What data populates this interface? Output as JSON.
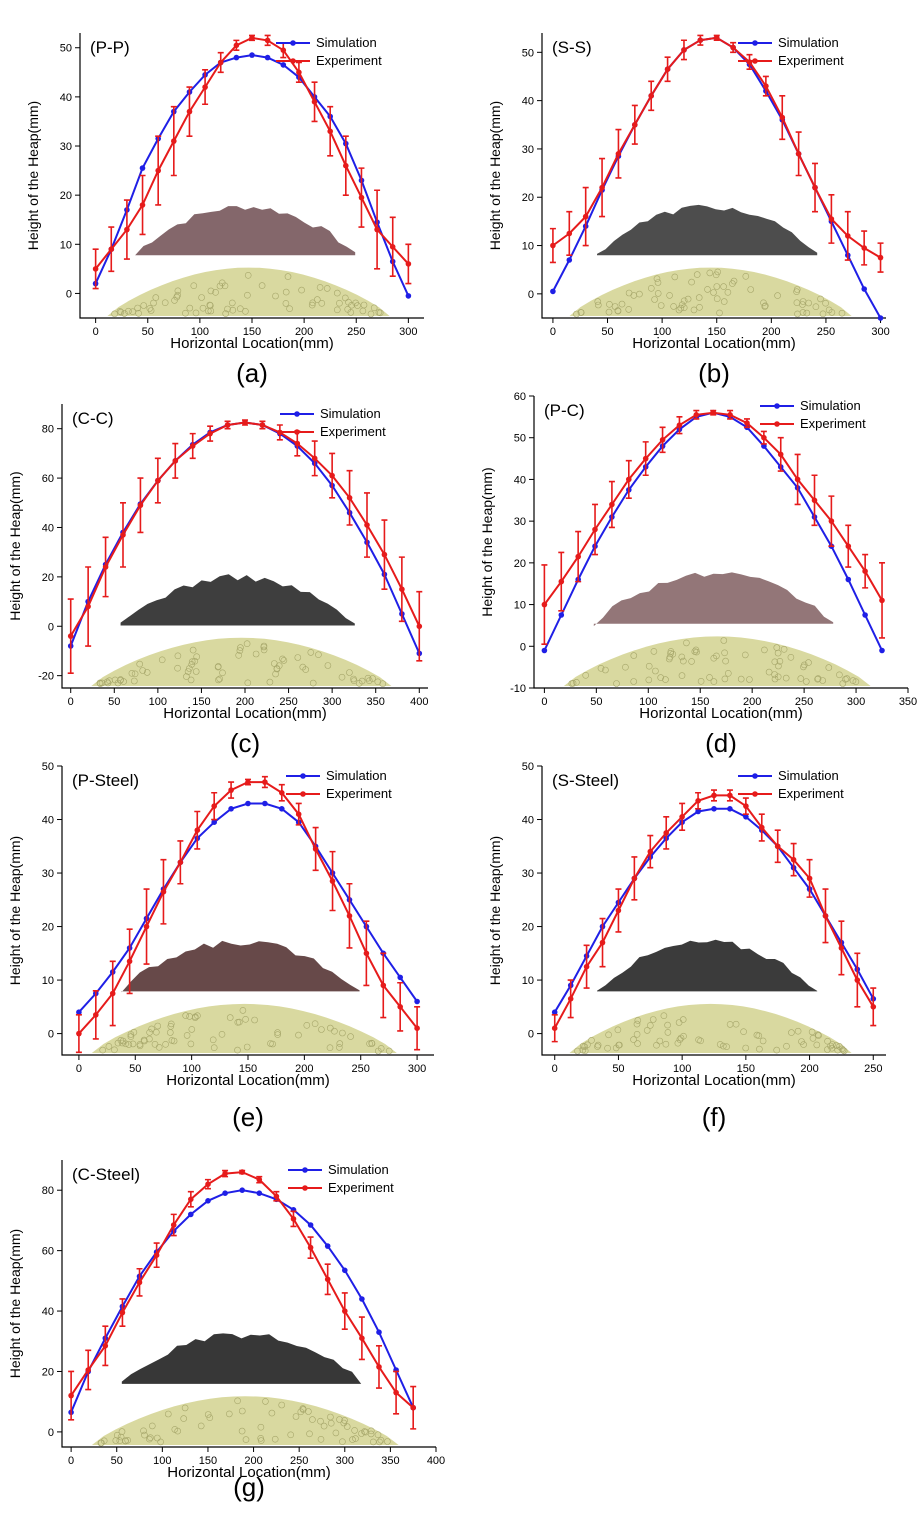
{
  "colors": {
    "simulation": "#1f1fe6",
    "experiment": "#e61b1b",
    "sim_particles": "#d9d9a0",
    "sim_particles_edge": "#a6a66a"
  },
  "chart_data": [
    {
      "type": "line",
      "subtitle": "(a)",
      "title": "(P-P)",
      "xlabel": "Horizontal Location(mm)",
      "ylabel": "Height of the Heap(mm)",
      "xlim": [
        -15,
        315
      ],
      "ylim": [
        -5,
        53
      ],
      "xticks": [
        0,
        50,
        100,
        150,
        200,
        250,
        300
      ],
      "yticks": [
        0,
        10,
        20,
        30,
        40,
        50
      ],
      "legend_position": "top-right",
      "photo_color": "#7a5a5e",
      "series": [
        {
          "name": "Simulation",
          "x": [
            0,
            15,
            30,
            45,
            60,
            75,
            90,
            105,
            120,
            135,
            150,
            165,
            180,
            195,
            210,
            225,
            240,
            255,
            270,
            285,
            300
          ],
          "values": [
            2,
            9,
            17,
            25.5,
            31.5,
            37,
            41,
            44.5,
            47,
            48,
            48.5,
            48,
            46.5,
            44,
            40,
            36,
            30.5,
            23,
            14.5,
            6.5,
            -0.5
          ]
        },
        {
          "name": "Experiment",
          "x": [
            0,
            15,
            30,
            45,
            60,
            75,
            90,
            105,
            120,
            135,
            150,
            165,
            180,
            195,
            210,
            225,
            240,
            255,
            270,
            285,
            300
          ],
          "values": [
            5,
            9,
            13,
            18,
            25,
            31,
            37,
            42,
            47,
            50.5,
            52,
            51.5,
            49.5,
            45,
            39,
            33,
            26,
            19.5,
            13,
            9.5,
            6
          ],
          "err": [
            4,
            4.5,
            6,
            6,
            7,
            7,
            5,
            3.5,
            2,
            1,
            0.5,
            1,
            1.5,
            2,
            4,
            5,
            6,
            6,
            8,
            6,
            4
          ]
        }
      ]
    },
    {
      "type": "line",
      "subtitle": "(b)",
      "title": "(S-S)",
      "xlabel": "Horizontal Location(mm)",
      "ylabel": "Height of the Heap(mm)",
      "xlim": [
        -10,
        305
      ],
      "ylim": [
        -5,
        54
      ],
      "xticks": [
        0,
        50,
        100,
        150,
        200,
        250,
        300
      ],
      "yticks": [
        0,
        10,
        20,
        30,
        40,
        50
      ],
      "legend_position": "top-right",
      "photo_color": "#3e3e3e",
      "series": [
        {
          "name": "Simulation",
          "x": [
            0,
            15,
            30,
            45,
            60,
            75,
            90,
            105,
            120,
            135,
            150,
            165,
            180,
            195,
            210,
            225,
            240,
            255,
            270,
            285,
            300
          ],
          "values": [
            0.5,
            7,
            14,
            21.5,
            28.5,
            35,
            41,
            46.5,
            50.5,
            52.5,
            53,
            51,
            47.5,
            42,
            36,
            29,
            22,
            15,
            8,
            1,
            -5
          ]
        },
        {
          "name": "Experiment",
          "x": [
            0,
            15,
            30,
            45,
            60,
            75,
            90,
            105,
            120,
            135,
            150,
            165,
            180,
            195,
            210,
            225,
            240,
            255,
            270,
            285,
            300
          ],
          "values": [
            10,
            12.5,
            16,
            22,
            29,
            35,
            41,
            46.5,
            50.5,
            52.5,
            53,
            51,
            48,
            43,
            36.5,
            29,
            22,
            15.5,
            12,
            9.5,
            7.5
          ],
          "err": [
            3.5,
            4.5,
            6,
            6,
            5,
            4,
            3,
            2.5,
            2,
            1,
            0.5,
            1,
            1.5,
            2,
            4.5,
            4.5,
            5,
            5,
            5,
            3.5,
            3
          ]
        }
      ]
    },
    {
      "type": "line",
      "subtitle": "(c)",
      "title": "(C-C)",
      "xlabel": "Horizontal Location(mm)",
      "ylabel": "Height of the Heap(mm)",
      "xlim": [
        -10,
        410
      ],
      "ylim": [
        -25,
        90
      ],
      "xticks": [
        0,
        50,
        100,
        150,
        200,
        250,
        300,
        350,
        400
      ],
      "yticks": [
        -20,
        0,
        20,
        40,
        60,
        80
      ],
      "legend_position": "top-right",
      "photo_color": "#2e2e2e",
      "series": [
        {
          "name": "Simulation",
          "x": [
            0,
            20,
            40,
            60,
            80,
            100,
            120,
            140,
            160,
            180,
            200,
            220,
            240,
            260,
            280,
            300,
            320,
            340,
            360,
            380,
            400
          ],
          "values": [
            -8,
            10,
            25,
            38,
            49.5,
            59,
            67,
            73.5,
            78.5,
            81.5,
            82.5,
            81.5,
            78,
            73,
            66,
            57,
            46,
            34,
            21,
            5,
            -11
          ]
        },
        {
          "name": "Experiment",
          "x": [
            0,
            20,
            40,
            60,
            80,
            100,
            120,
            140,
            160,
            180,
            200,
            220,
            240,
            260,
            280,
            300,
            320,
            340,
            360,
            380,
            400
          ],
          "values": [
            -4,
            8,
            24,
            37,
            49,
            59,
            67,
            73,
            78,
            81.5,
            82.5,
            81.5,
            78.5,
            74,
            68,
            61,
            52,
            41,
            29,
            15,
            0
          ],
          "err": [
            15,
            16,
            12,
            13,
            11,
            9,
            7,
            5,
            3,
            1.5,
            1,
            1.5,
            3,
            5,
            7,
            9,
            11,
            13,
            14,
            13,
            14
          ]
        }
      ]
    },
    {
      "type": "line",
      "subtitle": "(d)",
      "title": "(P-C)",
      "xlabel": "Horizontal Location(mm)",
      "ylabel": "Height of the Heap(mm)",
      "xlim": [
        -10,
        350
      ],
      "ylim": [
        -10,
        60
      ],
      "xticks": [
        0,
        50,
        100,
        150,
        200,
        250,
        300,
        350
      ],
      "yticks": [
        -10,
        0,
        10,
        20,
        30,
        40,
        50,
        60
      ],
      "legend_position": "top-right",
      "photo_color": "#8a6a6c",
      "series": [
        {
          "name": "Simulation",
          "x": [
            0,
            16.25,
            32.5,
            48.75,
            65,
            81.25,
            97.5,
            113.75,
            130,
            146.25,
            162.5,
            178.75,
            195,
            211.25,
            227.5,
            243.75,
            260,
            276.25,
            292.5,
            308.75,
            325
          ],
          "values": [
            -1,
            7.5,
            16,
            24,
            31,
            37.5,
            43,
            48,
            52,
            55,
            56,
            55,
            52.5,
            48,
            43,
            38,
            31,
            24,
            16,
            7.5,
            -1
          ]
        },
        {
          "name": "Experiment",
          "x": [
            0,
            16.25,
            32.5,
            48.75,
            65,
            81.25,
            97.5,
            113.75,
            130,
            146.25,
            162.5,
            178.75,
            195,
            211.25,
            227.5,
            243.75,
            260,
            276.25,
            292.5,
            308.75,
            325
          ],
          "values": [
            10,
            15.5,
            21.5,
            28,
            34,
            40,
            45,
            49.5,
            53,
            55.5,
            56,
            55.5,
            53.5,
            50,
            46,
            40,
            35,
            30,
            24,
            18,
            11
          ],
          "err": [
            9.5,
            7,
            6,
            6,
            5.5,
            4.5,
            4,
            3,
            2,
            1,
            0.5,
            1,
            1,
            1.5,
            4,
            6,
            6,
            6,
            5,
            4,
            9
          ]
        }
      ]
    },
    {
      "type": "line",
      "subtitle": "(e)",
      "title": "(P-Steel)",
      "xlabel": "Horizontal Location(mm)",
      "ylabel": "Height of the Heap(mm)",
      "xlim": [
        -15,
        315
      ],
      "ylim": [
        -4,
        50
      ],
      "xticks": [
        0,
        50,
        100,
        150,
        200,
        250,
        300
      ],
      "yticks": [
        0,
        10,
        20,
        30,
        40,
        50
      ],
      "legend_position": "top-right",
      "photo_color": "#5a3a3a",
      "series": [
        {
          "name": "Simulation",
          "x": [
            0,
            15,
            30,
            45,
            60,
            75,
            90,
            105,
            120,
            135,
            150,
            165,
            180,
            195,
            210,
            225,
            240,
            255,
            270,
            285,
            300
          ],
          "values": [
            4,
            7.5,
            11.5,
            16,
            21.5,
            27,
            32,
            36.5,
            39.5,
            42,
            43,
            43,
            42,
            39.5,
            35,
            30,
            25,
            20,
            15,
            10.5,
            6
          ]
        },
        {
          "name": "Experiment",
          "x": [
            0,
            15,
            30,
            45,
            60,
            75,
            90,
            105,
            120,
            135,
            150,
            165,
            180,
            195,
            210,
            225,
            240,
            255,
            270,
            285,
            300
          ],
          "values": [
            0,
            3.5,
            7.5,
            13.5,
            20,
            26.5,
            32,
            38,
            42.5,
            45.5,
            47,
            47,
            45,
            41,
            34.5,
            28.5,
            22,
            15,
            9,
            5,
            1
          ],
          "err": [
            3.5,
            4.5,
            6,
            6,
            7,
            6,
            4,
            3.5,
            2.5,
            1.5,
            0.5,
            1,
            1.5,
            2,
            4,
            5.5,
            6,
            6,
            6,
            4.5,
            4
          ]
        }
      ]
    },
    {
      "type": "line",
      "subtitle": "(f)",
      "title": "(S-Steel)",
      "xlabel": "Horizontal Location(mm)",
      "ylabel": "Height of the Heap(mm)",
      "xlim": [
        -10,
        260
      ],
      "ylim": [
        -4,
        50
      ],
      "xticks": [
        0,
        50,
        100,
        150,
        200,
        250
      ],
      "yticks": [
        0,
        10,
        20,
        30,
        40,
        50
      ],
      "legend_position": "top-right",
      "photo_color": "#2a2a2a",
      "series": [
        {
          "name": "Simulation",
          "x": [
            0,
            12.5,
            25,
            37.5,
            50,
            62.5,
            75,
            87.5,
            100,
            112.5,
            125,
            137.5,
            150,
            162.5,
            175,
            187.5,
            200,
            212.5,
            225,
            237.5,
            250
          ],
          "values": [
            4,
            9,
            14.5,
            20,
            24.5,
            29,
            33,
            36.5,
            39.5,
            41.5,
            42,
            42,
            40.5,
            38,
            35,
            31,
            27,
            22,
            17,
            12,
            6.5
          ]
        },
        {
          "name": "Experiment",
          "x": [
            0,
            12.5,
            25,
            37.5,
            50,
            62.5,
            75,
            87.5,
            100,
            112.5,
            125,
            137.5,
            150,
            162.5,
            175,
            187.5,
            200,
            212.5,
            225,
            237.5,
            250
          ],
          "values": [
            1,
            6.5,
            12.5,
            17,
            23,
            29,
            34,
            37.5,
            40.5,
            43.5,
            44.5,
            44.5,
            42.5,
            38.5,
            35,
            32.5,
            29,
            22,
            16,
            10,
            5
          ],
          "err": [
            2.5,
            3.5,
            4,
            4.5,
            4,
            4,
            3,
            3,
            2.5,
            1.5,
            1,
            1,
            1.5,
            2.5,
            3,
            3,
            3.5,
            5,
            5,
            5,
            3.5
          ]
        }
      ]
    },
    {
      "type": "line",
      "subtitle": "(g)",
      "title": "(C-Steel)",
      "xlabel": "Horizontal Location(mm)",
      "ylabel": "Height of the Heap(mm)",
      "xlim": [
        -10,
        400
      ],
      "ylim": [
        -5,
        90
      ],
      "xticks": [
        0,
        50,
        100,
        150,
        200,
        250,
        300,
        350,
        400
      ],
      "yticks": [
        0,
        20,
        40,
        60,
        80
      ],
      "legend_position": "top-right",
      "photo_color": "#262626",
      "series": [
        {
          "name": "Simulation",
          "x": [
            0,
            18.75,
            37.5,
            56.25,
            75,
            93.75,
            112.5,
            131.25,
            150,
            168.75,
            187.5,
            206.25,
            225,
            243.75,
            262.5,
            281.25,
            300,
            318.75,
            337.5,
            356.25,
            375
          ],
          "values": [
            6.5,
            20,
            31,
            41.5,
            51.5,
            59.5,
            66.5,
            72,
            76.5,
            79,
            80,
            79,
            77,
            73.5,
            68.5,
            61.5,
            53.5,
            44,
            33,
            20.5,
            8
          ]
        },
        {
          "name": "Experiment",
          "x": [
            0,
            18.75,
            37.5,
            56.25,
            75,
            93.75,
            112.5,
            131.25,
            150,
            168.75,
            187.5,
            206.25,
            225,
            243.75,
            262.5,
            281.25,
            300,
            318.75,
            337.5,
            356.25,
            375
          ],
          "values": [
            12,
            20.5,
            28.5,
            39.5,
            49.5,
            58.5,
            68.5,
            77,
            82,
            85.5,
            86,
            83.5,
            78,
            70.5,
            61,
            50.5,
            40,
            31,
            21.5,
            13,
            8
          ],
          "err": [
            8,
            6.5,
            6.5,
            4.5,
            4.5,
            4,
            3.5,
            2.5,
            1.5,
            1,
            0.5,
            1,
            1.5,
            2.5,
            3.5,
            5,
            6,
            7,
            7,
            7,
            7
          ]
        }
      ]
    }
  ]
}
